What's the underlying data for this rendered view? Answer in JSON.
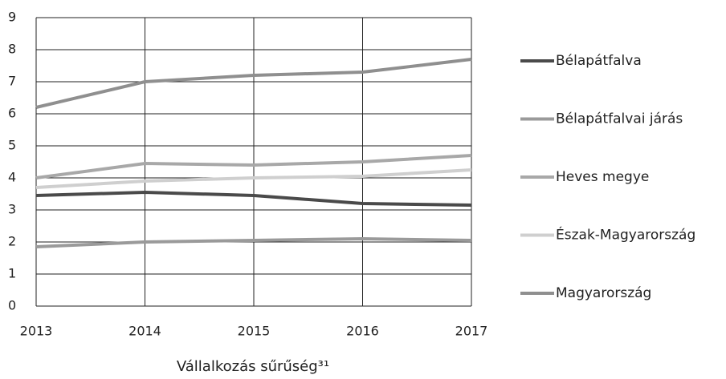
{
  "chart_data": {
    "type": "line",
    "caption": "Vállalkozás sűrűség³¹",
    "x": [
      2013,
      2014,
      2015,
      2016,
      2017
    ],
    "xlim": [
      2013,
      2017
    ],
    "xticks": [
      2013,
      2014,
      2015,
      2016,
      2017
    ],
    "ylim": [
      0,
      9
    ],
    "yticks": [
      0,
      1,
      2,
      3,
      4,
      5,
      6,
      7,
      8,
      9
    ],
    "grid": true,
    "legend": "right",
    "series": [
      {
        "name": "Bélapátfalva",
        "color": "#4a4a4a",
        "values": [
          3.45,
          3.55,
          3.45,
          3.2,
          3.15
        ]
      },
      {
        "name": "Bélapátfalvai járás",
        "color": "#9a9a9a",
        "values": [
          1.85,
          2.0,
          2.05,
          2.1,
          2.05
        ]
      },
      {
        "name": "Heves megye",
        "color": "#a8a8a8",
        "values": [
          4.0,
          4.45,
          4.4,
          4.5,
          4.7
        ]
      },
      {
        "name": "Észak-Magyarország",
        "color": "#cfcfcf",
        "values": [
          3.7,
          3.9,
          4.0,
          4.05,
          4.25
        ]
      },
      {
        "name": "Magyarország",
        "color": "#8f8f8f",
        "values": [
          6.2,
          7.0,
          7.2,
          7.3,
          7.7
        ]
      }
    ]
  }
}
